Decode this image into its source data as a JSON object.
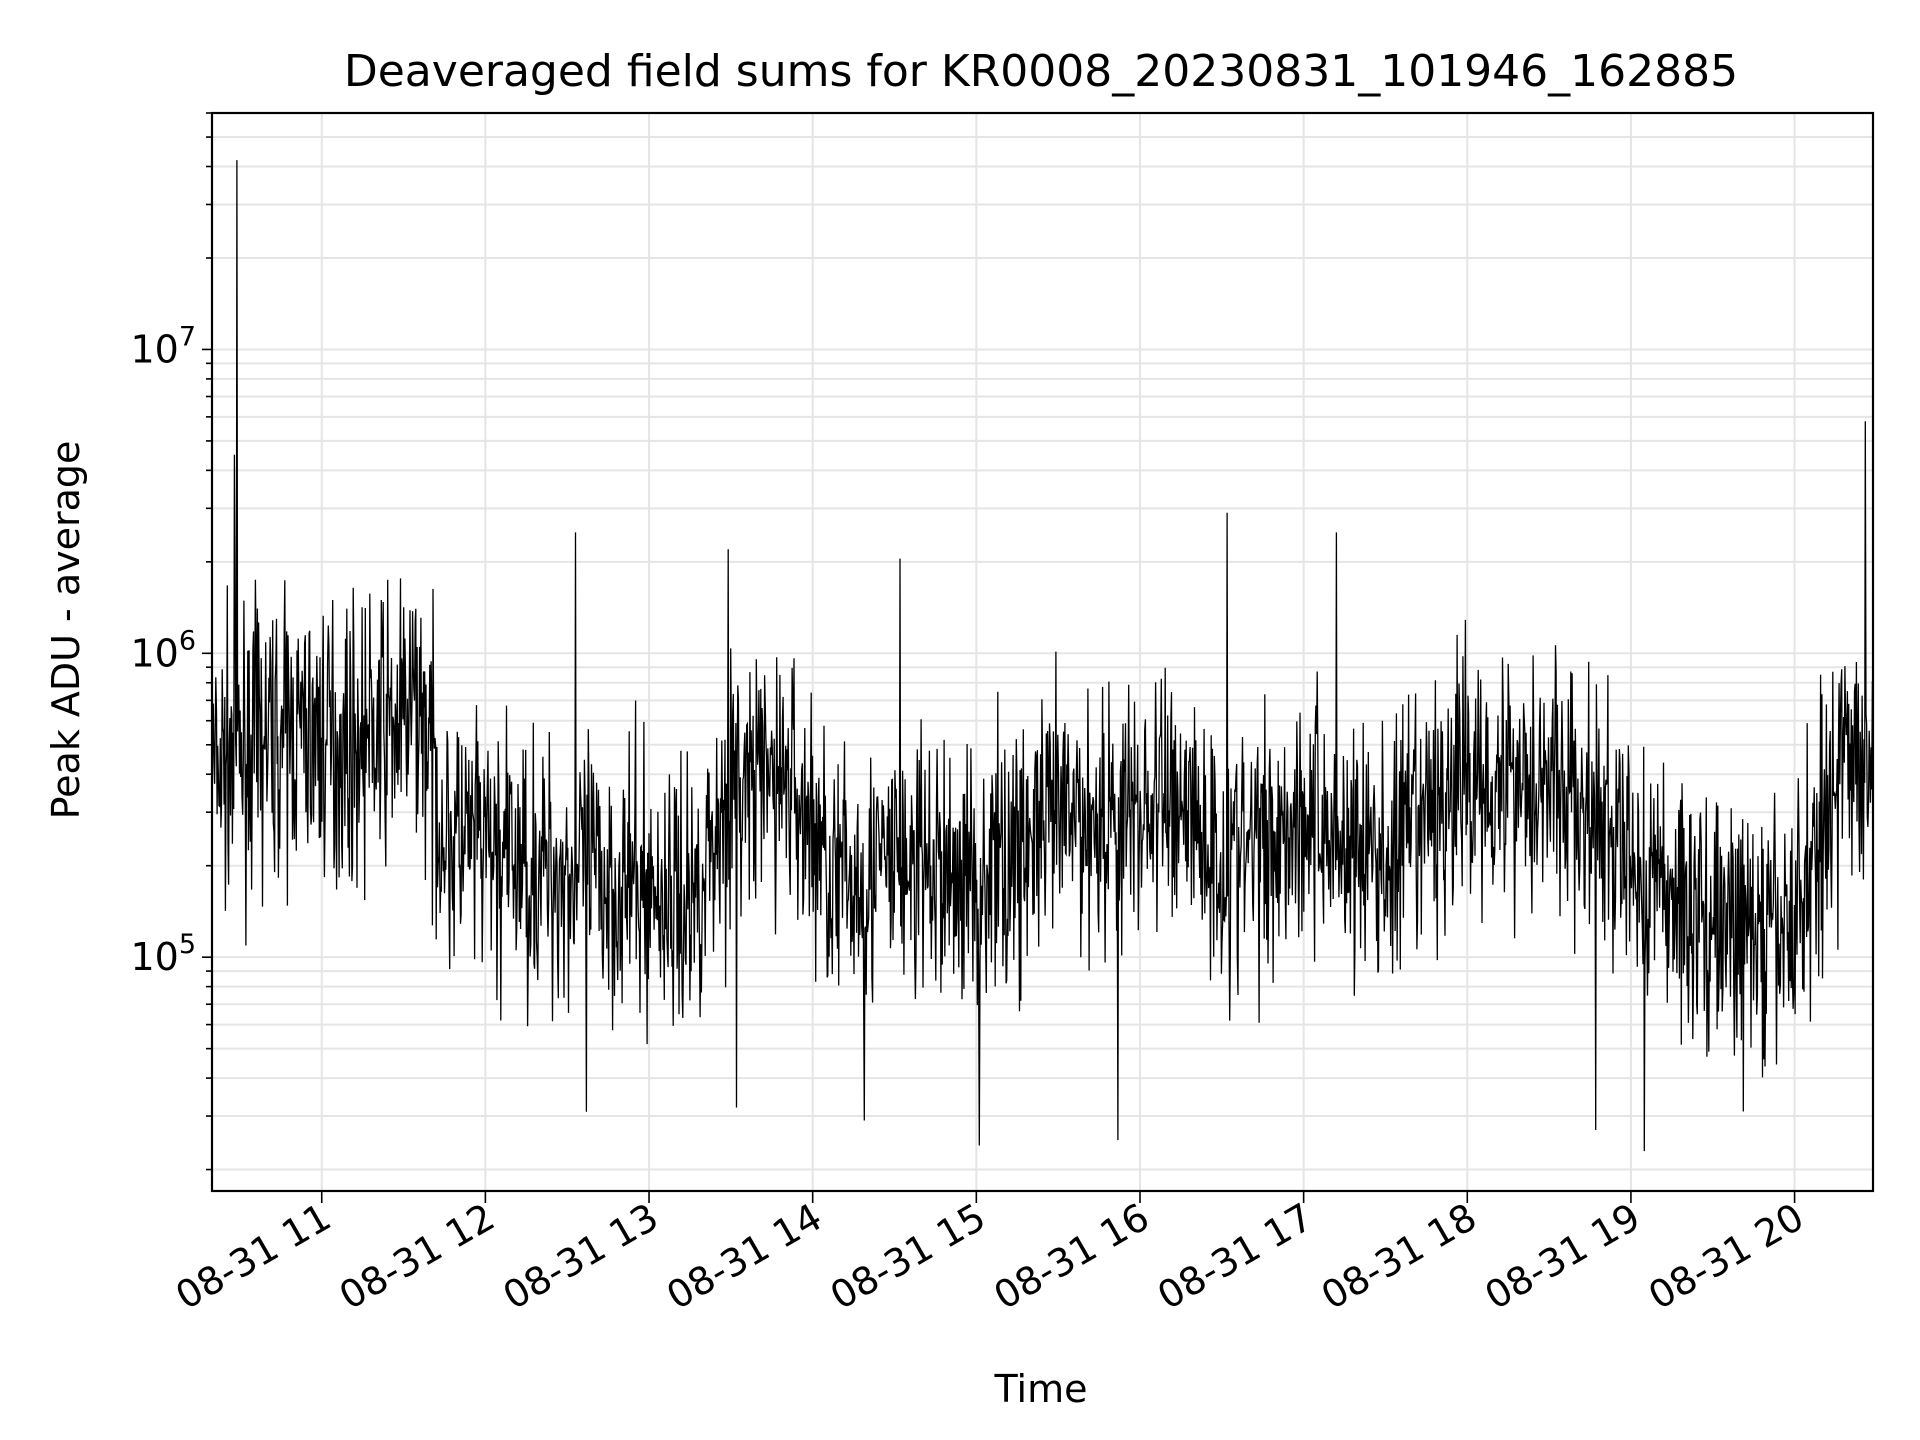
{
  "chart_data": {
    "type": "line",
    "title": "Deaveraged field sums for KR0008_20230831_101946_162885",
    "xlabel": "Time",
    "ylabel": "Peak ADU - average",
    "yscale": "log",
    "ylim": [
      17000,
      60000000
    ],
    "xlim": [
      "08-31 10:19:46",
      "08-31 20:28:45"
    ],
    "x_ticks": [
      "08-31 11",
      "08-31 12",
      "08-31 13",
      "08-31 14",
      "08-31 15",
      "08-31 16",
      "08-31 17",
      "08-31 18",
      "08-31 19",
      "08-31 20"
    ],
    "y_ticks": [
      {
        "base": "10",
        "exp": "5",
        "value": 100000
      },
      {
        "base": "10",
        "exp": "6",
        "value": 1000000
      },
      {
        "base": "10",
        "exp": "7",
        "value": 10000000
      }
    ],
    "grid": true,
    "line_color": "#000000",
    "series_profile": {
      "time": [
        "10:20",
        "10:35",
        "10:50",
        "11:10",
        "11:30",
        "11:36",
        "11:45",
        "12:15",
        "12:45",
        "13:15",
        "13:30",
        "13:50",
        "14:10",
        "14:30",
        "15:00",
        "15:30",
        "16:00",
        "16:15",
        "16:30",
        "17:00",
        "17:30",
        "18:00",
        "18:30",
        "19:00",
        "19:30",
        "19:50",
        "20:00",
        "20:15",
        "20:28"
      ],
      "typical_value": [
        400000,
        500000,
        550000,
        500000,
        600000,
        700000,
        250000,
        200000,
        180000,
        150000,
        350000,
        400000,
        170000,
        200000,
        180000,
        280000,
        300000,
        350000,
        200000,
        300000,
        200000,
        400000,
        400000,
        200000,
        130000,
        110000,
        130000,
        400000,
        500000
      ]
    },
    "spikes": [
      {
        "time": "10:29",
        "value": 42000000
      },
      {
        "time": "10:28",
        "value": 4500000
      },
      {
        "time": "12:33",
        "value": 2500000
      },
      {
        "time": "13:29",
        "value": 2200000
      },
      {
        "time": "14:32",
        "value": 2050000
      },
      {
        "time": "16:32",
        "value": 2900000
      },
      {
        "time": "17:12",
        "value": 2500000
      },
      {
        "time": "20:26",
        "value": 5800000
      },
      {
        "time": "12:37",
        "value": 31000
      },
      {
        "time": "14:19",
        "value": 29000
      },
      {
        "time": "15:01",
        "value": 24000
      },
      {
        "time": "15:52",
        "value": 25000
      },
      {
        "time": "19:05",
        "value": 23000
      },
      {
        "time": "18:47",
        "value": 27000
      },
      {
        "time": "13:32",
        "value": 32000
      }
    ]
  }
}
